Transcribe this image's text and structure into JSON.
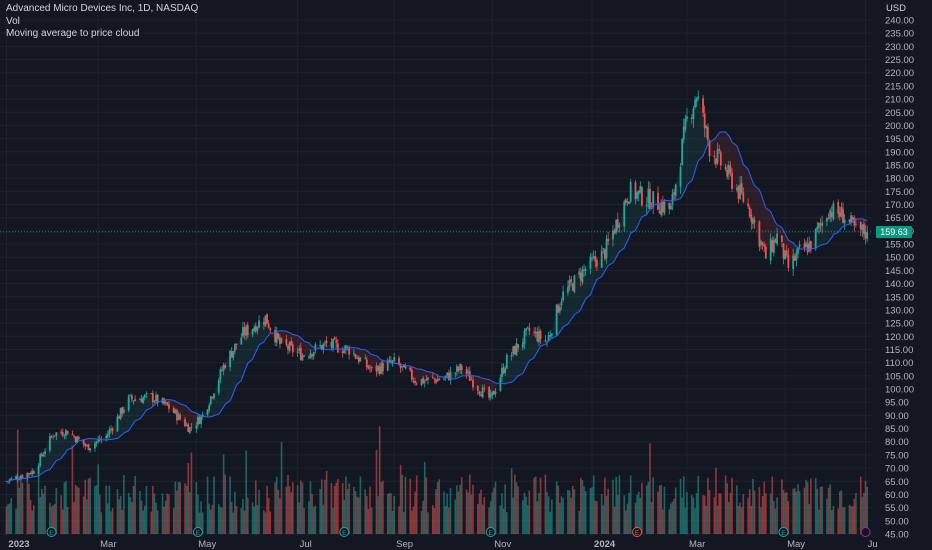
{
  "legend": {
    "title": "Advanced Micro Devices Inc, 1D, NASDAQ",
    "volume": "Vol",
    "indicator": "Moving average to price cloud"
  },
  "currency": "USD",
  "last_price_label": "159.63",
  "colors": {
    "up": "#26a69a",
    "down": "#ef5350",
    "ma": "#2962ff",
    "bg": "#131722",
    "grid": "#1e222d"
  },
  "chart_data": {
    "type": "candlestick",
    "title": "Advanced Micro Devices Inc, 1D, NASDAQ",
    "y_axis": {
      "label": "USD",
      "range": [
        45,
        240
      ],
      "ticks": [
        "240.00",
        "235.00",
        "230.00",
        "225.00",
        "220.00",
        "215.00",
        "210.00",
        "205.00",
        "200.00",
        "195.00",
        "190.00",
        "185.00",
        "180.00",
        "175.00",
        "170.00",
        "165.00",
        "160.00",
        "155.00",
        "150.00",
        "145.00",
        "140.00",
        "135.00",
        "130.00",
        "125.00",
        "120.00",
        "115.00",
        "110.00",
        "105.00",
        "100.00",
        "95.00",
        "90.00",
        "85.00",
        "80.00",
        "75.00",
        "70.00",
        "65.00",
        "60.00",
        "55.00",
        "50.00",
        "45.00"
      ]
    },
    "x_axis": {
      "ticks": [
        {
          "label": "2023",
          "date": "2023-01-03",
          "bold": true
        },
        {
          "label": "Mar",
          "date": "2023-03-01"
        },
        {
          "label": "May",
          "date": "2023-05-01"
        },
        {
          "label": "Jul",
          "date": "2023-07-03"
        },
        {
          "label": "Sep",
          "date": "2023-09-01"
        },
        {
          "label": "Nov",
          "date": "2023-11-01"
        },
        {
          "label": "2024",
          "date": "2024-01-02",
          "bold": true
        },
        {
          "label": "Mar",
          "date": "2024-03-01"
        },
        {
          "label": "May",
          "date": "2024-05-01"
        },
        {
          "label": "Ju",
          "date": "2024-06-20"
        }
      ]
    },
    "last_price": 159.63,
    "moving_average_label": "Moving average to price cloud",
    "price_path": [
      [
        "2023-01-03",
        65
      ],
      [
        "2023-01-20",
        69
      ],
      [
        "2023-02-01",
        83
      ],
      [
        "2023-02-10",
        84
      ],
      [
        "2023-02-22",
        78
      ],
      [
        "2023-03-06",
        82
      ],
      [
        "2023-03-20",
        96
      ],
      [
        "2023-04-03",
        97
      ],
      [
        "2023-04-14",
        93
      ],
      [
        "2023-04-27",
        85
      ],
      [
        "2023-05-05",
        90
      ],
      [
        "2023-05-19",
        110
      ],
      [
        "2023-05-30",
        121
      ],
      [
        "2023-06-13",
        127
      ],
      [
        "2023-06-22",
        117
      ],
      [
        "2023-07-06",
        113
      ],
      [
        "2023-07-21",
        117
      ],
      [
        "2023-08-04",
        115
      ],
      [
        "2023-08-18",
        107
      ],
      [
        "2023-09-01",
        110
      ],
      [
        "2023-09-15",
        103
      ],
      [
        "2023-10-02",
        104
      ],
      [
        "2023-10-13",
        108
      ],
      [
        "2023-10-24",
        100
      ],
      [
        "2023-10-31",
        96
      ],
      [
        "2023-11-10",
        111
      ],
      [
        "2023-11-24",
        122
      ],
      [
        "2023-12-05",
        118
      ],
      [
        "2023-12-14",
        135
      ],
      [
        "2023-12-28",
        145
      ],
      [
        "2024-01-10",
        152
      ],
      [
        "2024-01-25",
        175
      ],
      [
        "2024-02-07",
        172
      ],
      [
        "2024-02-20",
        168
      ],
      [
        "2024-03-01",
        202
      ],
      [
        "2024-03-07",
        212
      ],
      [
        "2024-03-15",
        192
      ],
      [
        "2024-03-28",
        180
      ],
      [
        "2024-04-09",
        168
      ],
      [
        "2024-04-19",
        150
      ],
      [
        "2024-04-26",
        158
      ],
      [
        "2024-05-03",
        146
      ],
      [
        "2024-05-10",
        152
      ],
      [
        "2024-05-17",
        155
      ],
      [
        "2024-05-28",
        168
      ],
      [
        "2024-06-06",
        166
      ],
      [
        "2024-06-14",
        160
      ],
      [
        "2024-06-21",
        159.63
      ]
    ],
    "volume_note": "Volume histogram rendered below price bars",
    "event_markers": [
      {
        "label": "E",
        "date": "2023-01-31",
        "color": "#26a69a"
      },
      {
        "label": "E",
        "date": "2023-05-02",
        "color": "#26a69a"
      },
      {
        "label": "E",
        "date": "2023-08-01",
        "color": "#26a69a"
      },
      {
        "label": "E",
        "date": "2023-10-31",
        "color": "#26a69a"
      },
      {
        "label": "E",
        "date": "2024-01-30",
        "color": "#ef5350"
      },
      {
        "label": "E",
        "date": "2024-04-30",
        "color": "#26a69a"
      },
      {
        "label": "",
        "date": "2024-06-20",
        "color": "#9c27b0"
      }
    ]
  }
}
